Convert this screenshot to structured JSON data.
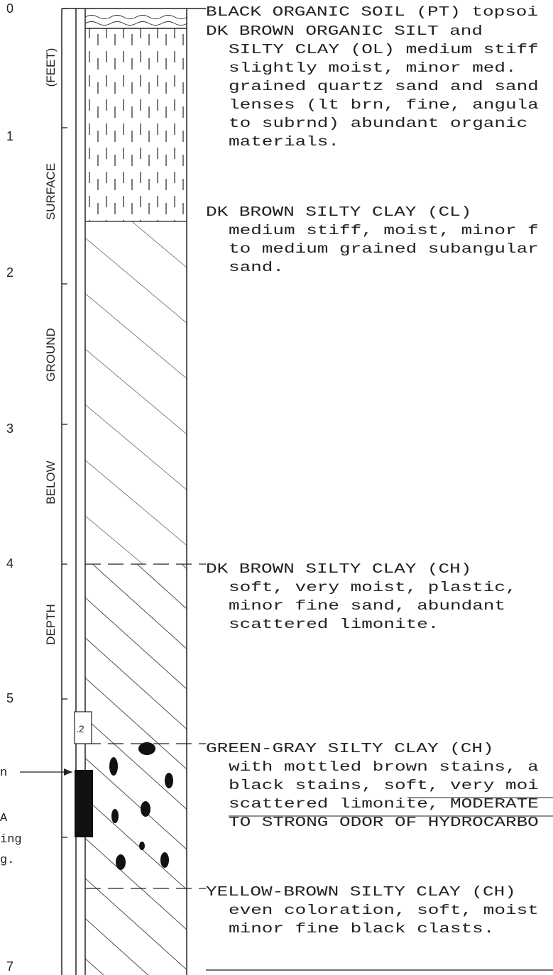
{
  "depth_labels": [
    "0",
    "1",
    "2",
    "3",
    "4",
    "5",
    "7"
  ],
  "axis_words": [
    "(FEET)",
    "SURFACE",
    "GROUND",
    "BELOW",
    "DEPTH"
  ],
  "sample_label": ".2",
  "side_notes": [
    "n",
    "A",
    "ing",
    "g."
  ],
  "layers": [
    {
      "heading": "BLACK ORGANIC SOIL (PT) topsoi",
      "lines": []
    },
    {
      "heading": "DK BROWN ORGANIC SILT and",
      "lines": [
        "SILTY CLAY (OL) medium stiff",
        "slightly moist, minor med.",
        "grained quartz sand and sand",
        "lenses (lt brn, fine, angula",
        "to subrnd) abundant organic",
        "materials."
      ]
    },
    {
      "heading": "DK BROWN SILTY CLAY (CL)",
      "lines": [
        "medium stiff, moist, minor f",
        "to medium grained subangular",
        "sand."
      ]
    },
    {
      "heading": "DK BROWN SILTY CLAY (CH)",
      "lines": [
        "soft, very moist, plastic,",
        "minor fine sand, abundant",
        "scattered limonite."
      ]
    },
    {
      "heading": "GREEN-GRAY SILTY CLAY (CH)",
      "lines": [
        "with mottled brown stains, a",
        "black stains, soft, very moi",
        "scattered limonite, MODERATE",
        "TO STRONG ODOR OF HYDROCARBO"
      ]
    },
    {
      "heading": "YELLOW-BROWN SILTY CLAY (CH)",
      "lines": [
        "even coloration, soft, moist",
        "minor fine black clasts."
      ]
    }
  ]
}
